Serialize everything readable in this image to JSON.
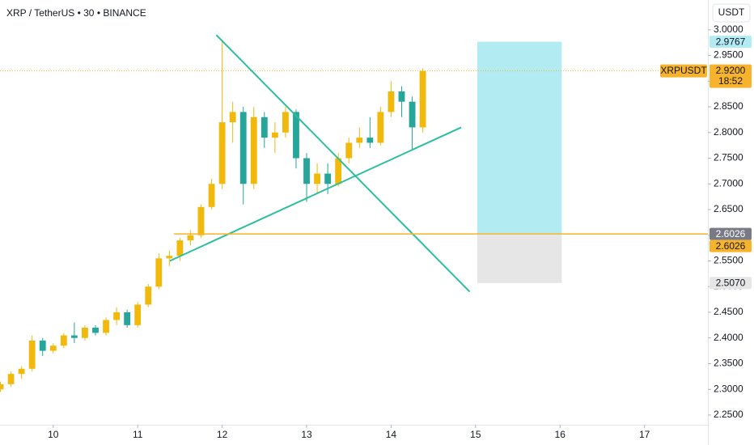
{
  "chart_data": {
    "type": "candlestick",
    "title": "XRP / TetherUS • 30 • BINANCE",
    "currency": "USDT",
    "up_color": "#f0b90b",
    "down_color": "#26a69a",
    "x": [
      9.375,
      9.5,
      9.625,
      9.75,
      9.875,
      10.0,
      10.125,
      10.25,
      10.375,
      10.5,
      10.625,
      10.75,
      10.875,
      11.0,
      11.125,
      11.25,
      11.375,
      11.5,
      11.625,
      11.75,
      11.875,
      12.0,
      12.125,
      12.25,
      12.375,
      12.5,
      12.625,
      12.75,
      12.875,
      13.0,
      13.125,
      13.25,
      13.375,
      13.5,
      13.625,
      13.75,
      13.875,
      14.0,
      14.125,
      14.25,
      14.375
    ],
    "open": [
      2.3,
      2.31,
      2.33,
      2.34,
      2.395,
      2.375,
      2.385,
      2.405,
      2.4,
      2.42,
      2.41,
      2.435,
      2.45,
      2.425,
      2.465,
      2.5,
      2.555,
      2.56,
      2.59,
      2.6,
      2.655,
      2.7,
      2.82,
      2.84,
      2.7,
      2.83,
      2.79,
      2.8,
      2.84,
      2.75,
      2.7,
      2.72,
      2.7,
      2.75,
      2.78,
      2.79,
      2.78,
      2.84,
      2.88,
      2.86,
      2.81
    ],
    "high": [
      2.315,
      2.335,
      2.345,
      2.405,
      2.4,
      2.39,
      2.41,
      2.43,
      2.425,
      2.425,
      2.44,
      2.46,
      2.455,
      2.47,
      2.505,
      2.565,
      2.57,
      2.595,
      2.61,
      2.66,
      2.71,
      2.98,
      2.86,
      2.85,
      2.85,
      2.84,
      2.82,
      2.85,
      2.845,
      2.76,
      2.74,
      2.74,
      2.76,
      2.79,
      2.81,
      2.83,
      2.85,
      2.9,
      2.89,
      2.87,
      2.925
    ],
    "low": [
      2.295,
      2.305,
      2.32,
      2.335,
      2.365,
      2.37,
      2.38,
      2.39,
      2.395,
      2.405,
      2.405,
      2.425,
      2.42,
      2.42,
      2.46,
      2.495,
      2.54,
      2.55,
      2.58,
      2.595,
      2.65,
      2.69,
      2.78,
      2.66,
      2.69,
      2.77,
      2.76,
      2.79,
      2.73,
      2.665,
      2.68,
      2.68,
      2.695,
      2.74,
      2.77,
      2.77,
      2.775,
      2.83,
      2.83,
      2.765,
      2.8
    ],
    "close": [
      2.31,
      2.33,
      2.34,
      2.395,
      2.375,
      2.385,
      2.405,
      2.4,
      2.42,
      2.41,
      2.435,
      2.45,
      2.425,
      2.465,
      2.5,
      2.555,
      2.56,
      2.59,
      2.6,
      2.655,
      2.7,
      2.82,
      2.84,
      2.7,
      2.83,
      2.79,
      2.8,
      2.84,
      2.75,
      2.7,
      2.72,
      2.7,
      2.75,
      2.78,
      2.79,
      2.78,
      2.84,
      2.88,
      2.86,
      2.81,
      2.92
    ],
    "xlim": [
      9.37,
      17.75
    ],
    "xticks": [
      10,
      11,
      12,
      13,
      14,
      15,
      16,
      17
    ],
    "ylim": [
      2.231,
      3.058
    ],
    "yticks": [
      {
        "value": 2.25,
        "label": "2.2500"
      },
      {
        "value": 2.3,
        "label": "2.3000"
      },
      {
        "value": 2.35,
        "label": "2.3500"
      },
      {
        "value": 2.4,
        "label": "2.4000"
      },
      {
        "value": 2.45,
        "label": "2.4500"
      },
      {
        "value": 2.5,
        "label": "2.5000"
      },
      {
        "value": 2.55,
        "label": "2.5500"
      },
      {
        "value": 2.6,
        "label": "2.6000"
      },
      {
        "value": 2.65,
        "label": "2.6500"
      },
      {
        "value": 2.7,
        "label": "2.7000"
      },
      {
        "value": 2.75,
        "label": "2.7500"
      },
      {
        "value": 2.8,
        "label": "2.8000"
      },
      {
        "value": 2.85,
        "label": "2.8500"
      },
      {
        "value": 2.9,
        "label": "2.9000"
      },
      {
        "value": 2.95,
        "label": "2.9500"
      },
      {
        "value": 3.0,
        "label": "3.0000"
      }
    ],
    "grid": false,
    "last_price": {
      "value": 2.92,
      "label": "2.9200",
      "symbol": "XRPUSDT",
      "countdown": "18:52",
      "color": "#f7b32b"
    },
    "trendlines": [
      {
        "x": [
          11.93,
          14.93
        ],
        "y": [
          2.99,
          2.49
        ],
        "color": "#2bbf9e"
      },
      {
        "x": [
          11.38,
          14.83
        ],
        "y": [
          2.55,
          2.81
        ],
        "color": "#2bbf9e"
      }
    ],
    "hline": {
      "value": 2.6026,
      "label": "2.6026",
      "start": 11.43,
      "color": "#f7b32b"
    },
    "position": {
      "x": [
        15.02,
        16.02
      ],
      "entry": 2.6026,
      "entry_label": "2.6026",
      "target": 2.9767,
      "target_label": "2.9767",
      "stop": 2.507,
      "stop_label": "2.5070",
      "target_color": "#b2ebf2",
      "stop_color": "#e6e6e6"
    }
  }
}
